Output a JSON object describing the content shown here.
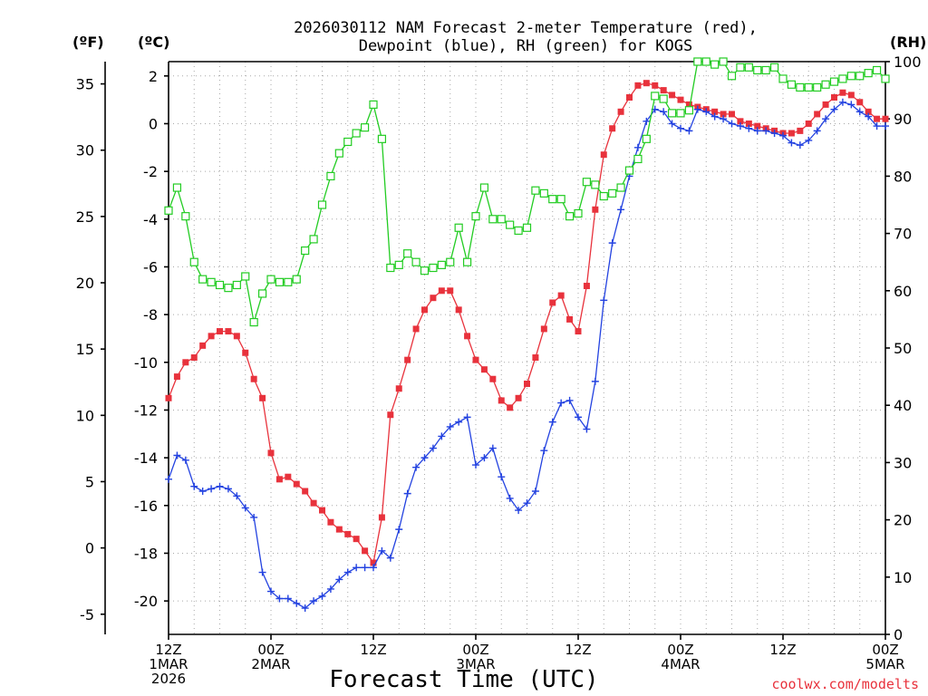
{
  "chart_data": {
    "type": "line",
    "title": "2026030112 NAM Forecast 2-meter Temperature (red), Dewpoint (blue), RH (green) for KOGS",
    "title_lines": [
      "2026030112 NAM Forecast 2-meter Temperature (red),",
      "Dewpoint (blue), RH (green) for KOGS"
    ],
    "xlabel": "Forecast Time (UTC)",
    "credit": "coolwx.com/modelts",
    "units": {
      "fahrenheit": "(ºF)",
      "celsius": "(ºC)",
      "rh": "(RH)"
    },
    "x_range_hours": [
      0,
      84
    ],
    "x_ticks": [
      {
        "hour": 0,
        "lines": [
          "12Z",
          "1MAR",
          "2026"
        ]
      },
      {
        "hour": 12,
        "lines": [
          "00Z",
          "2MAR"
        ]
      },
      {
        "hour": 24,
        "lines": [
          "12Z"
        ]
      },
      {
        "hour": 36,
        "lines": [
          "00Z",
          "3MAR"
        ]
      },
      {
        "hour": 48,
        "lines": [
          "12Z"
        ]
      },
      {
        "hour": 60,
        "lines": [
          "00Z",
          "4MAR"
        ]
      },
      {
        "hour": 72,
        "lines": [
          "12Z"
        ]
      },
      {
        "hour": 84,
        "lines": [
          "00Z",
          "5MAR"
        ]
      }
    ],
    "celsius_axis": {
      "ylim": [
        -21.4,
        2.6
      ],
      "ticks": [
        2,
        0,
        -2,
        -4,
        -6,
        -8,
        -10,
        -12,
        -14,
        -16,
        -18,
        -20
      ]
    },
    "fahrenheit_axis": {
      "ylim": [
        -6.52,
        36.68
      ],
      "ticks": [
        35,
        30,
        25,
        20,
        15,
        10,
        5,
        0,
        -5
      ]
    },
    "rh_axis": {
      "ylim": [
        0,
        100
      ],
      "ticks": [
        100,
        90,
        80,
        70,
        60,
        50,
        40,
        30,
        20,
        10,
        0
      ]
    },
    "series": [
      {
        "name": "Temperature",
        "axis": "celsius",
        "color": "#e8323c",
        "marker": "filled-square",
        "values": [
          -11.5,
          -10.6,
          -10.0,
          -9.8,
          -9.3,
          -8.9,
          -8.7,
          -8.7,
          -8.9,
          -9.6,
          -10.7,
          -11.5,
          -13.8,
          -14.9,
          -14.8,
          -15.1,
          -15.4,
          -15.9,
          -16.2,
          -16.7,
          -17.0,
          -17.2,
          -17.4,
          -17.9,
          -18.4,
          -16.5,
          -12.2,
          -11.1,
          -9.9,
          -8.6,
          -7.8,
          -7.3,
          -7.0,
          -7.0,
          -7.8,
          -8.9,
          -9.9,
          -10.3,
          -10.7,
          -11.6,
          -11.9,
          -11.5,
          -10.9,
          -9.8,
          -8.6,
          -7.5,
          -7.2,
          -8.2,
          -8.7,
          -6.8,
          -3.6,
          -1.3,
          -0.2,
          0.5,
          1.1,
          1.6,
          1.7,
          1.6,
          1.4,
          1.2,
          1.0,
          0.8,
          0.7,
          0.6,
          0.5,
          0.4,
          0.4,
          0.1,
          0.0,
          -0.1,
          -0.2,
          -0.3,
          -0.4,
          -0.4,
          -0.3,
          0.0,
          0.4,
          0.8,
          1.1,
          1.3,
          1.2,
          0.9,
          0.5,
          0.2,
          0.2
        ]
      },
      {
        "name": "Dewpoint",
        "axis": "celsius",
        "color": "#2342e0",
        "marker": "plus",
        "values": [
          -14.9,
          -13.9,
          -14.1,
          -15.2,
          -15.4,
          -15.3,
          -15.2,
          -15.3,
          -15.6,
          -16.1,
          -16.5,
          -18.8,
          -19.6,
          -19.9,
          -19.9,
          -20.1,
          -20.3,
          -20.0,
          -19.8,
          -19.5,
          -19.1,
          -18.8,
          -18.6,
          -18.6,
          -18.6,
          -17.9,
          -18.2,
          -17.0,
          -15.5,
          -14.4,
          -14.0,
          -13.6,
          -13.1,
          -12.7,
          -12.5,
          -12.3,
          -14.3,
          -14.0,
          -13.6,
          -14.8,
          -15.7,
          -16.2,
          -15.9,
          -15.4,
          -13.7,
          -12.5,
          -11.7,
          -11.6,
          -12.3,
          -12.8,
          -10.8,
          -7.4,
          -5.0,
          -3.6,
          -2.2,
          -1.0,
          0.1,
          0.6,
          0.5,
          0.0,
          -0.2,
          -0.3,
          0.6,
          0.5,
          0.3,
          0.2,
          0.0,
          -0.1,
          -0.2,
          -0.3,
          -0.3,
          -0.4,
          -0.5,
          -0.8,
          -0.9,
          -0.7,
          -0.3,
          0.2,
          0.6,
          0.9,
          0.8,
          0.5,
          0.3,
          -0.1,
          -0.1
        ]
      },
      {
        "name": "RH",
        "axis": "rh",
        "color": "#22cc22",
        "marker": "open-square",
        "values": [
          74,
          78,
          73,
          65,
          62,
          61.5,
          61,
          60.5,
          61,
          62.5,
          54.5,
          59.5,
          62,
          61.5,
          61.5,
          62,
          67,
          69,
          75,
          80,
          84,
          86,
          87.5,
          88.5,
          92.5,
          86.5,
          64,
          64.5,
          66.5,
          65,
          63.5,
          64,
          64.5,
          65,
          71,
          65,
          73,
          78,
          72.5,
          72.5,
          71.5,
          70.5,
          71,
          77.5,
          77,
          76,
          76,
          73,
          73.5,
          79,
          78.5,
          76.5,
          77,
          78,
          81,
          83,
          86.5,
          94,
          93.5,
          91,
          91,
          91.5,
          100,
          100,
          99.5,
          100,
          97.5,
          99,
          99,
          98.5,
          98.5,
          99,
          97,
          96,
          95.5,
          95.5,
          95.5,
          96,
          96.5,
          97,
          97.5,
          97.5,
          98,
          98.5,
          97
        ]
      }
    ]
  }
}
